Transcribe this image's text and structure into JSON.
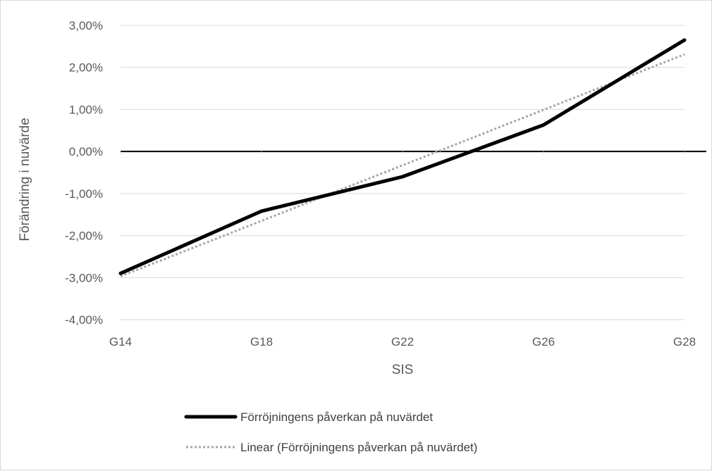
{
  "chart_data": {
    "type": "line",
    "categories": [
      "G14",
      "G18",
      "G22",
      "G26",
      "G28"
    ],
    "series": [
      {
        "name": "Förröjningens påverkan på nuvärdet",
        "values": [
          -2.9,
          -1.42,
          -0.6,
          0.63,
          2.65
        ],
        "color": "#000000",
        "style": "solid"
      },
      {
        "name": "Linear (Förröjningens påverkan på nuvärdet)",
        "values": [
          -2.97,
          -1.65,
          -0.33,
          0.99,
          2.31
        ],
        "color": "#a6a6a6",
        "style": "dotted"
      }
    ],
    "xlabel": "SIS",
    "ylabel": "Förändring i nuvärde",
    "ylim": [
      -4,
      3
    ],
    "yticks": [
      3,
      2,
      1,
      0,
      -1,
      -2,
      -3,
      -4
    ],
    "ytick_labels": [
      "3,00%",
      "2,00%",
      "1,00%",
      "0,00%",
      "-1,00%",
      "-2,00%",
      "-3,00%",
      "-4,00%"
    ],
    "grid": true,
    "legend_position": "bottom"
  }
}
